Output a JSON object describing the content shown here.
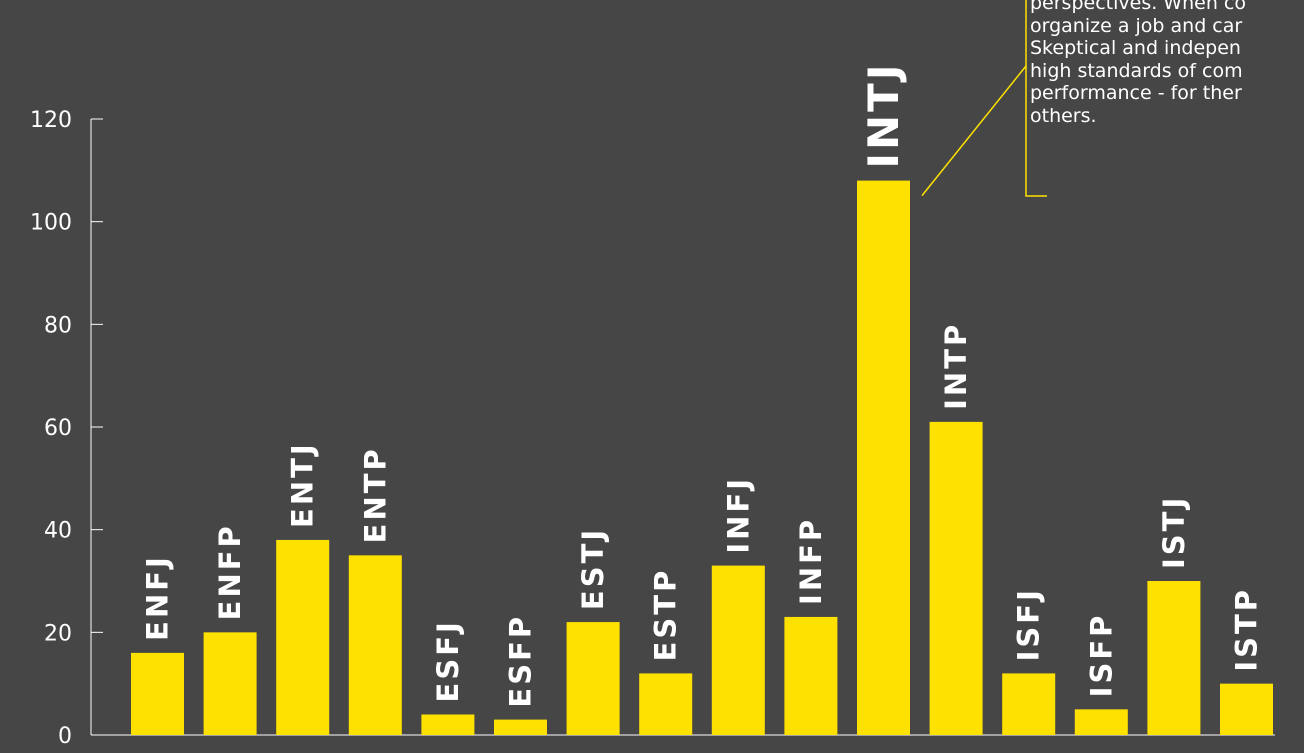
{
  "chart_data": {
    "type": "bar",
    "categories": [
      "ENFJ",
      "ENFP",
      "ENTJ",
      "ENTP",
      "ESFJ",
      "ESFP",
      "ESTJ",
      "ESTP",
      "INFJ",
      "INFP",
      "INTJ",
      "INTP",
      "ISFJ",
      "ISFP",
      "ISTJ",
      "ISTP"
    ],
    "values": [
      16,
      20,
      38,
      35,
      4,
      3,
      22,
      12,
      33,
      23,
      108,
      61,
      12,
      5,
      30,
      10
    ],
    "title": "",
    "xlabel": "",
    "ylabel": "",
    "ylim": [
      0,
      120
    ],
    "yticks": [
      0,
      20,
      40,
      60,
      80,
      100,
      120
    ],
    "grid": false,
    "legend": "none",
    "highlight_category": "INTJ",
    "annotation": {
      "target": "INTJ",
      "text": "perspectives. When co\norganize a job and car\nSkeptical and indepen\nhigh standards of com\nperformance - for ther\nothers."
    }
  },
  "colors": {
    "background": "#464646",
    "bar": "#ffe100",
    "text": "#ffffff",
    "axis": "#ffffff",
    "annotation_line": "#ffe100"
  }
}
